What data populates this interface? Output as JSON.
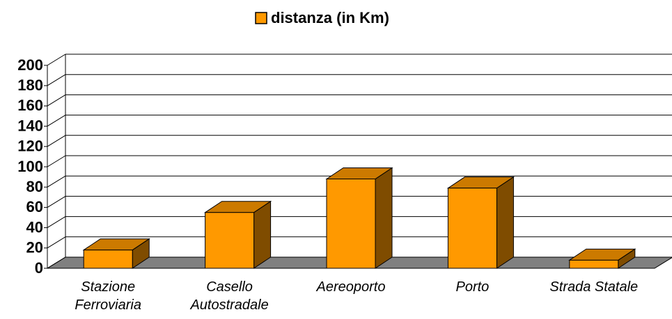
{
  "chart_data": {
    "type": "bar3d",
    "legend": "distanza (in Km)",
    "categories": [
      "Stazione Ferroviaria",
      "Casello Autostradale",
      "Aereoporto",
      "Porto",
      "Strada Statale"
    ],
    "values": [
      18,
      55,
      88,
      79,
      8
    ],
    "color": "#ff9900",
    "ylim": [
      0,
      200
    ],
    "yticks": [
      0,
      20,
      40,
      60,
      80,
      100,
      120,
      140,
      160,
      180,
      200
    ],
    "grid": true
  }
}
